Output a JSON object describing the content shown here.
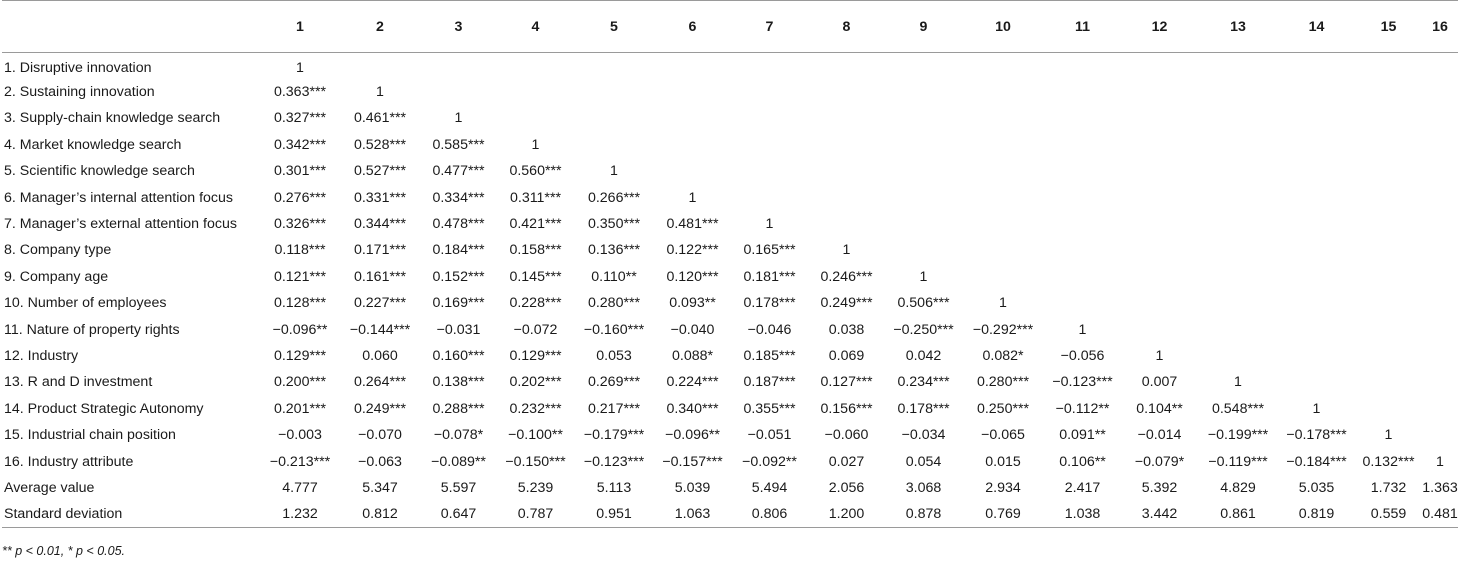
{
  "table": {
    "columns": [
      "",
      "1",
      "2",
      "3",
      "4",
      "5",
      "6",
      "7",
      "8",
      "9",
      "10",
      "11",
      "12",
      "13",
      "14",
      "15",
      "16"
    ],
    "rows": [
      [
        "1. Disruptive innovation",
        "1",
        "",
        "",
        "",
        "",
        "",
        "",
        "",
        "",
        "",
        "",
        "",
        "",
        "",
        "",
        ""
      ],
      [
        "2. Sustaining innovation",
        "0.363***",
        "1",
        "",
        "",
        "",
        "",
        "",
        "",
        "",
        "",
        "",
        "",
        "",
        "",
        "",
        ""
      ],
      [
        "3. Supply-chain knowledge search",
        "0.327***",
        "0.461***",
        "1",
        "",
        "",
        "",
        "",
        "",
        "",
        "",
        "",
        "",
        "",
        "",
        "",
        ""
      ],
      [
        "4. Market knowledge search",
        "0.342***",
        "0.528***",
        "0.585***",
        "1",
        "",
        "",
        "",
        "",
        "",
        "",
        "",
        "",
        "",
        "",
        "",
        ""
      ],
      [
        "5. Scientific knowledge search",
        "0.301***",
        "0.527***",
        "0.477***",
        "0.560***",
        "1",
        "",
        "",
        "",
        "",
        "",
        "",
        "",
        "",
        "",
        "",
        ""
      ],
      [
        "6. Manager’s internal attention focus",
        "0.276***",
        "0.331***",
        "0.334***",
        "0.311***",
        "0.266***",
        "1",
        "",
        "",
        "",
        "",
        "",
        "",
        "",
        "",
        "",
        ""
      ],
      [
        "7. Manager’s external attention focus",
        "0.326***",
        "0.344***",
        "0.478***",
        "0.421***",
        "0.350***",
        "0.481***",
        "1",
        "",
        "",
        "",
        "",
        "",
        "",
        "",
        "",
        ""
      ],
      [
        "8. Company type",
        "0.118***",
        "0.171***",
        "0.184***",
        "0.158***",
        "0.136***",
        "0.122***",
        "0.165***",
        "1",
        "",
        "",
        "",
        "",
        "",
        "",
        "",
        ""
      ],
      [
        "9. Company age",
        "0.121***",
        "0.161***",
        "0.152***",
        "0.145***",
        "0.110**",
        "0.120***",
        "0.181***",
        "0.246***",
        "1",
        "",
        "",
        "",
        "",
        "",
        "",
        ""
      ],
      [
        "10. Number of employees",
        "0.128***",
        "0.227***",
        "0.169***",
        "0.228***",
        "0.280***",
        "0.093**",
        "0.178***",
        "0.249***",
        "0.506***",
        "1",
        "",
        "",
        "",
        "",
        "",
        ""
      ],
      [
        "11. Nature of property rights",
        "−0.096**",
        "−0.144***",
        "−0.031",
        "−0.072",
        "−0.160***",
        "−0.040",
        "−0.046",
        "0.038",
        "−0.250***",
        "−0.292***",
        "1",
        "",
        "",
        "",
        "",
        ""
      ],
      [
        "12. Industry",
        "0.129***",
        "0.060",
        "0.160***",
        "0.129***",
        "0.053",
        "0.088*",
        "0.185***",
        "0.069",
        "0.042",
        "0.082*",
        "−0.056",
        "1",
        "",
        "",
        "",
        ""
      ],
      [
        "13. R and D investment",
        "0.200***",
        "0.264***",
        "0.138***",
        "0.202***",
        "0.269***",
        "0.224***",
        "0.187***",
        "0.127***",
        "0.234***",
        "0.280***",
        "−0.123***",
        "0.007",
        "1",
        "",
        "",
        ""
      ],
      [
        "14. Product Strategic Autonomy",
        "0.201***",
        "0.249***",
        "0.288***",
        "0.232***",
        "0.217***",
        "0.340***",
        "0.355***",
        "0.156***",
        "0.178***",
        "0.250***",
        "−0.112**",
        "0.104**",
        "0.548***",
        "1",
        "",
        ""
      ],
      [
        "15. Industrial chain position",
        "−0.003",
        "−0.070",
        "−0.078*",
        "−0.100**",
        "−0.179***",
        "−0.096**",
        "−0.051",
        "−0.060",
        "−0.034",
        "−0.065",
        "0.091**",
        "−0.014",
        "−0.199***",
        "−0.178***",
        "1",
        ""
      ],
      [
        "16. Industry attribute",
        "−0.213***",
        "−0.063",
        "−0.089**",
        "−0.150***",
        "−0.123***",
        "−0.157***",
        "−0.092**",
        "0.027",
        "0.054",
        "0.015",
        "0.106**",
        "−0.079*",
        "−0.119***",
        "−0.184***",
        "0.132***",
        "1"
      ],
      [
        "Average value",
        "4.777",
        "5.347",
        "5.597",
        "5.239",
        "5.113",
        "5.039",
        "5.494",
        "2.056",
        "3.068",
        "2.934",
        "2.417",
        "5.392",
        "4.829",
        "5.035",
        "1.732",
        "1.363"
      ],
      [
        "Standard deviation",
        "1.232",
        "0.812",
        "0.647",
        "0.787",
        "0.951",
        "1.063",
        "0.806",
        "1.200",
        "0.878",
        "0.769",
        "1.038",
        "3.442",
        "0.861",
        "0.819",
        "0.559",
        "0.481"
      ]
    ]
  },
  "footnote": "** p < 0.01, * p < 0.05."
}
